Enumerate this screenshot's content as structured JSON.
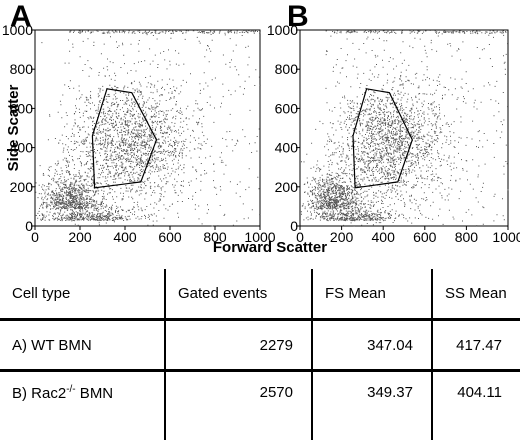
{
  "chart_data": [
    {
      "type": "scatter",
      "panel": "A",
      "xlabel": "Forward Scatter",
      "ylabel": "Side Scatter",
      "xlim": [
        0,
        1000
      ],
      "ylim": [
        0,
        1000
      ],
      "x_ticks": [
        "0",
        "200",
        "400",
        "600",
        "800",
        "1000"
      ],
      "y_ticks": [
        "0",
        "200",
        "400",
        "600",
        "800",
        "1000"
      ],
      "gate_polygon": [
        [
          320,
          700
        ],
        [
          430,
          680
        ],
        [
          540,
          440
        ],
        [
          470,
          225
        ],
        [
          370,
          210
        ],
        [
          265,
          195
        ],
        [
          255,
          460
        ]
      ]
    },
    {
      "type": "scatter",
      "panel": "B",
      "xlabel": "",
      "ylabel": "",
      "xlim": [
        0,
        1000
      ],
      "ylim": [
        0,
        1000
      ],
      "x_ticks": [
        "0",
        "200",
        "400",
        "600",
        "800",
        "1000"
      ],
      "y_ticks": [
        "0",
        "200",
        "400",
        "600",
        "800",
        "1000"
      ],
      "gate_polygon": [
        [
          320,
          700
        ],
        [
          430,
          680
        ],
        [
          540,
          440
        ],
        [
          470,
          225
        ],
        [
          370,
          210
        ],
        [
          265,
          195
        ],
        [
          255,
          460
        ]
      ]
    }
  ],
  "table": {
    "headers": [
      "Cell type",
      "Gated events",
      "FS Mean",
      "SS Mean"
    ],
    "rows": [
      {
        "cell_prefix": "A) WT BMN",
        "cell_sup": "",
        "cell_suffix": "",
        "gated": "2279",
        "fs": "347.04",
        "ss": "417.47"
      },
      {
        "cell_prefix": "B) Rac2",
        "cell_sup": "-/-",
        "cell_suffix": " BMN",
        "gated": "2570",
        "fs": "349.37",
        "ss": "404.11"
      }
    ]
  }
}
